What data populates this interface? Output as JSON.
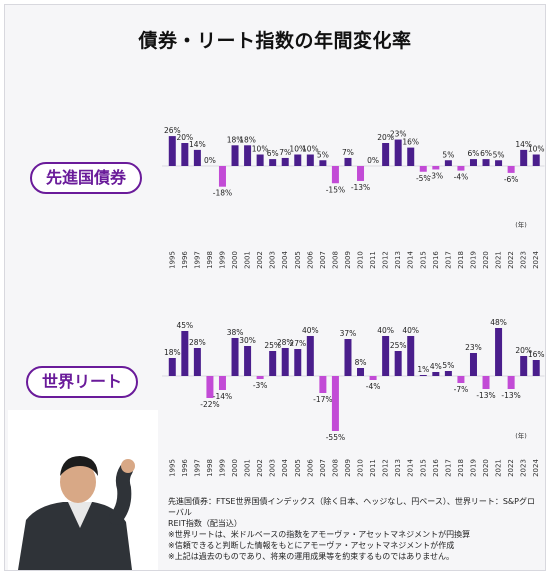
{
  "title": "債券・リート指数の年間変化率",
  "bond_label": "先進国債券",
  "reit_label": "世界リート",
  "year_unit": "(年)",
  "notes": [
    "先進国債券：FTSE世界国債インデックス（除く日本、ヘッジなし、円ベース）、世界リート：S&Pグローバル",
    "REIT指数（配当込）",
    "※世界リートは、米ドルベースの指数をアモーヴァ・アセットマネジメントが円換算",
    "※信頼できると判断した情報をもとにアモーヴァ・アセットマネジメントが作成",
    "※上記は過去のものであり、将来の運用成果等を約束するものではありません。"
  ],
  "colors": {
    "positive": "#4a1e8c",
    "negative": "#c24bd6",
    "accent": "#6a1b9a"
  },
  "chart_data": [
    {
      "type": "bar",
      "series_label": "先進国債券",
      "categories": [
        "1995",
        "1996",
        "1997",
        "1998",
        "1999",
        "2000",
        "2001",
        "2002",
        "2003",
        "2004",
        "2005",
        "2006",
        "2007",
        "2008",
        "2009",
        "2010",
        "2011",
        "2012",
        "2013",
        "2014",
        "2015",
        "2016",
        "2017",
        "2018",
        "2019",
        "2020",
        "2021",
        "2022",
        "2023",
        "2024"
      ],
      "values": [
        26,
        20,
        14,
        0,
        -18,
        18,
        18,
        10,
        6,
        7,
        10,
        10,
        5,
        -15,
        7,
        -13,
        0,
        20,
        23,
        16,
        -5,
        -3,
        5,
        -4,
        6,
        6,
        5,
        -6,
        14,
        10
      ],
      "value_labels": [
        "26%",
        "20%",
        "14%",
        "0%",
        "-18%",
        "18%",
        "18%",
        "10%",
        "6%",
        "7%",
        "10%",
        "10%",
        "5%",
        "-15%",
        "7%",
        "-13%",
        "0%",
        "20%",
        "23%",
        "16%",
        "-5%",
        "-3%",
        "5%",
        "-4%",
        "6%",
        "6%",
        "5%",
        "-6%",
        "14%",
        "10%"
      ]
    },
    {
      "type": "bar",
      "series_label": "世界リート",
      "categories": [
        "1995",
        "1996",
        "1997",
        "1998",
        "1999",
        "2000",
        "2001",
        "2002",
        "2003",
        "2004",
        "2005",
        "2006",
        "2007",
        "2008",
        "2009",
        "2010",
        "2011",
        "2012",
        "2013",
        "2014",
        "2015",
        "2016",
        "2017",
        "2018",
        "2019",
        "2020",
        "2021",
        "2022",
        "2023",
        "2024"
      ],
      "values": [
        18,
        45,
        28,
        -22,
        -14,
        38,
        30,
        -3,
        25,
        28,
        27,
        40,
        -17,
        -55,
        37,
        8,
        -4,
        40,
        25,
        40,
        1,
        4,
        5,
        -7,
        23,
        -13,
        48,
        -13,
        20,
        16
      ],
      "value_labels": [
        "18%",
        "45%",
        "28%",
        "-22%",
        "-14%",
        "38%",
        "30%",
        "-3%",
        "25%",
        "28%",
        "27%",
        "40%",
        "-17%",
        "-55%",
        "37%",
        "8%",
        "-4%",
        "40%",
        "25%",
        "40%",
        "1%",
        "4%",
        "5%",
        "-7%",
        "23%",
        "-13%",
        "48%",
        "-13%",
        "20%",
        "16%"
      ]
    }
  ]
}
